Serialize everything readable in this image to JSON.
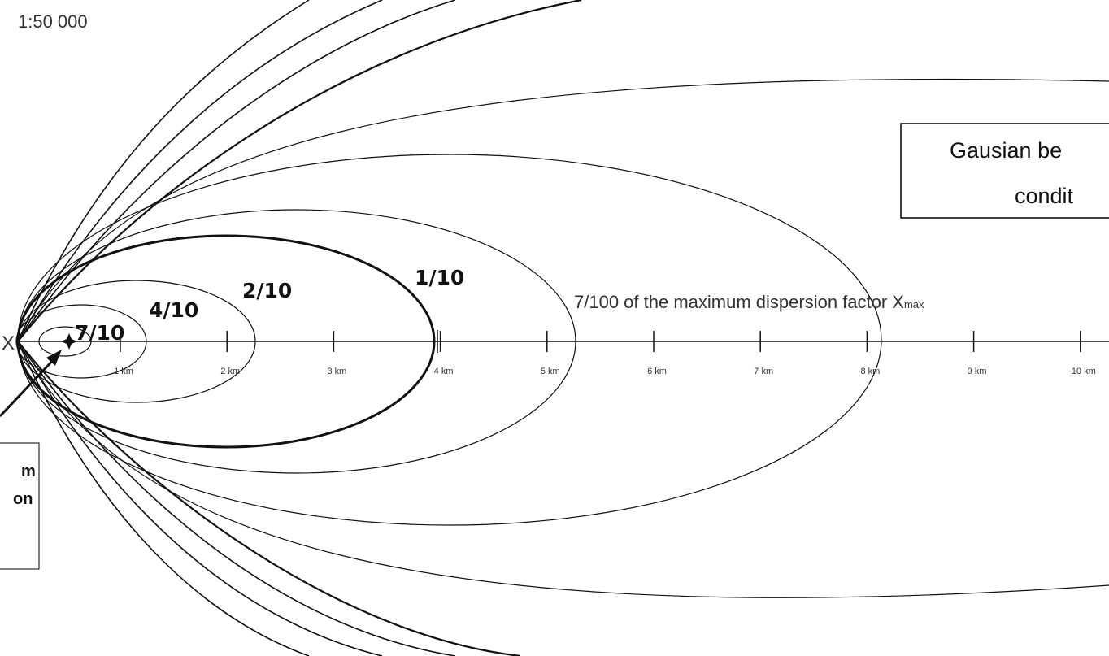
{
  "scale": "1:50 000",
  "axis_label": "X",
  "contours": [
    "7/10",
    "4/10",
    "2/10",
    "1/10"
  ],
  "outer_label": {
    "text": "7/100 of the maximum dispersion factor X",
    "subscript": "max"
  },
  "distances": [
    "1 km",
    "2 km",
    "3 km",
    "4 km",
    "5 km",
    "6 km",
    "7 km",
    "8 km",
    "9 km",
    "10 km"
  ],
  "top_box": {
    "lines": [
      "Gausian be",
      "condit"
    ]
  },
  "bottom_box": {
    "lines": [
      "m",
      "on"
    ]
  }
}
